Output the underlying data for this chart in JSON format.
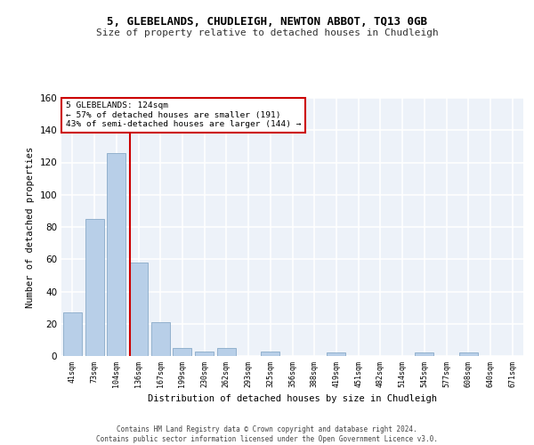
{
  "title_line1": "5, GLEBELANDS, CHUDLEIGH, NEWTON ABBOT, TQ13 0GB",
  "title_line2": "Size of property relative to detached houses in Chudleigh",
  "xlabel": "Distribution of detached houses by size in Chudleigh",
  "ylabel": "Number of detached properties",
  "categories": [
    "41sqm",
    "73sqm",
    "104sqm",
    "136sqm",
    "167sqm",
    "199sqm",
    "230sqm",
    "262sqm",
    "293sqm",
    "325sqm",
    "356sqm",
    "388sqm",
    "419sqm",
    "451sqm",
    "482sqm",
    "514sqm",
    "545sqm",
    "577sqm",
    "608sqm",
    "640sqm",
    "671sqm"
  ],
  "values": [
    27,
    85,
    126,
    58,
    21,
    5,
    3,
    5,
    0,
    3,
    0,
    0,
    2,
    0,
    0,
    0,
    2,
    0,
    2,
    0,
    0
  ],
  "bar_color": "#b8cfe8",
  "bar_edge_color": "#7a9ec0",
  "annotation_line1": "5 GLEBELANDS: 124sqm",
  "annotation_line2": "← 57% of detached houses are smaller (191)",
  "annotation_line3": "43% of semi-detached houses are larger (144) →",
  "ylim": [
    0,
    160
  ],
  "yticks": [
    0,
    20,
    40,
    60,
    80,
    100,
    120,
    140,
    160
  ],
  "background_color": "#edf2f9",
  "grid_color": "#ffffff",
  "annotation_box_color": "#ffffff",
  "annotation_box_edge_color": "#cc0000",
  "property_marker_color": "#cc0000",
  "footer_line1": "Contains HM Land Registry data © Crown copyright and database right 2024.",
  "footer_line2": "Contains public sector information licensed under the Open Government Licence v3.0."
}
